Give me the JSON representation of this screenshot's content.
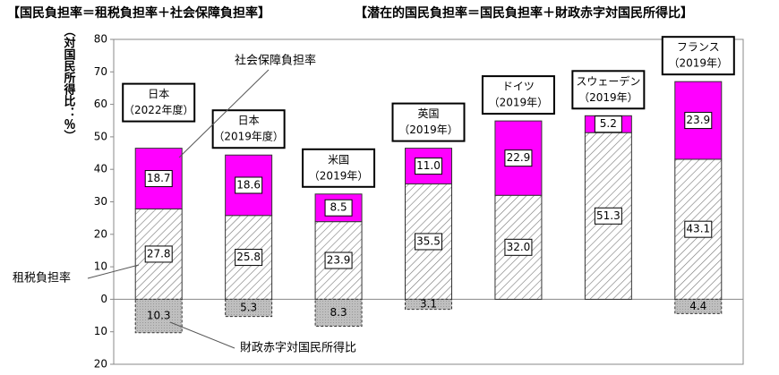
{
  "chart_data": {
    "type": "stacked-bar",
    "titles": [
      "【国民負担率＝租税負担率＋社会保障負担率】",
      "【潜在的国民負担率＝国民負担率＋財政赤字対国民所得比】"
    ],
    "y_label": "（対国民所得比：％）",
    "categories": [
      [
        "日本",
        "（2022年度）"
      ],
      [
        "日本",
        "（2019年度）"
      ],
      [
        "米国",
        "（2019年）"
      ],
      [
        "英国",
        "（2019年）"
      ],
      [
        "ドイツ",
        "（2019年）"
      ],
      [
        "スウェーデン",
        "（2019年）"
      ],
      [
        "フランス",
        "（2019年）"
      ]
    ],
    "series": [
      {
        "name": "租税負担率",
        "color": "#ffffff",
        "values": [
          27.8,
          25.8,
          23.9,
          35.5,
          32.0,
          51.3,
          43.1
        ],
        "value_labels": [
          "27.8",
          "25.8",
          "23.9",
          "35.5",
          "32.0",
          "51.3",
          "43.1"
        ]
      },
      {
        "name": "社会保障負担率",
        "color": "#ff00ff",
        "values": [
          18.7,
          18.6,
          8.5,
          11.0,
          22.9,
          5.2,
          23.9
        ],
        "value_labels": [
          "18.7",
          "18.6",
          "8.5",
          "11.0",
          "22.9",
          "5.2",
          "23.9"
        ]
      },
      {
        "name": "財政赤字対国民所得比",
        "color": "#bfbfbf",
        "values": [
          -10.3,
          -5.3,
          -8.3,
          -3.1,
          null,
          null,
          -4.4
        ],
        "value_labels": [
          "10.3",
          "5.3",
          "8.3",
          "3.1",
          null,
          null,
          "4.4"
        ]
      }
    ],
    "ylim": [
      -20,
      80
    ],
    "yticks": [
      {
        "value": -20,
        "label": "20"
      },
      {
        "value": -10,
        "label": "10"
      },
      0,
      10,
      20,
      30,
      40,
      50,
      60,
      70,
      80
    ],
    "grid": false
  }
}
